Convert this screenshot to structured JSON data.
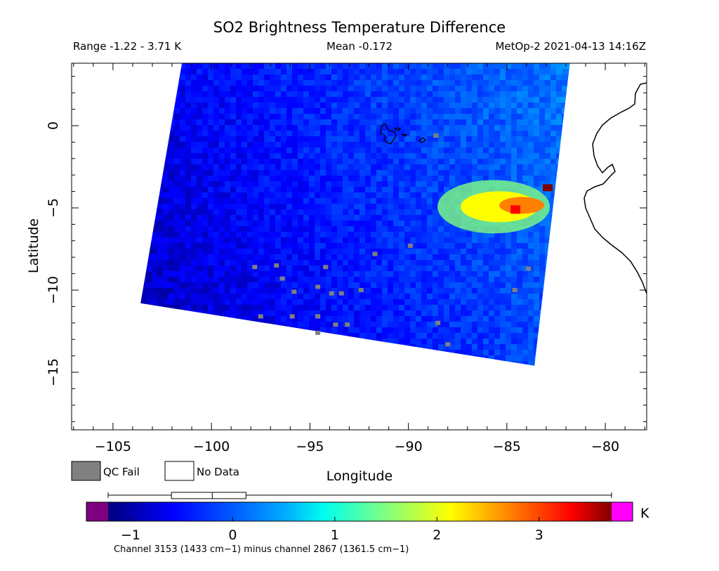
{
  "chart_data": {
    "type": "heatmap",
    "title": "SO2 Brightness Temperature Difference",
    "subtitle": {
      "range": "Range -1.22 - 3.71 K",
      "mean": "Mean -0.172",
      "instrument": "MetOp-2 2021-04-13 14:16Z"
    },
    "xlabel": "Longitude",
    "ylabel": "Latitude",
    "xlim": [
      -107.1,
      -77.9
    ],
    "ylim": [
      -18.5,
      3.8
    ],
    "x_ticks": [
      -105,
      -100,
      -95,
      -90,
      -85,
      -80
    ],
    "y_ticks": [
      0,
      -5,
      -10,
      -15
    ],
    "x_tick_labels": [
      "−105",
      "−100",
      "−95",
      "−90",
      "−85",
      "−80"
    ],
    "y_tick_labels": [
      "0",
      "−5",
      "−10",
      "−15"
    ],
    "swath_corners": [
      [
        -101.5,
        3.8
      ],
      [
        -81.8,
        3.8
      ],
      [
        -83.6,
        -14.6
      ],
      [
        -103.6,
        -10.8
      ]
    ],
    "plume": {
      "center": [
        -84.6,
        -5.1
      ],
      "peak_K": 3.71
    },
    "qc_fail_points": [
      [
        -97.8,
        -8.6
      ],
      [
        -96.7,
        -8.5
      ],
      [
        -96.4,
        -9.3
      ],
      [
        -95.8,
        -10.1
      ],
      [
        -94.2,
        -8.6
      ],
      [
        -94.6,
        -9.8
      ],
      [
        -93.9,
        -10.2
      ],
      [
        -93.4,
        -10.2
      ],
      [
        -97.5,
        -11.6
      ],
      [
        -95.9,
        -11.6
      ],
      [
        -94.6,
        -11.6
      ],
      [
        -93.7,
        -12.1
      ],
      [
        -93.1,
        -12.1
      ],
      [
        -94.6,
        -12.6
      ],
      [
        -92.4,
        -10.0
      ],
      [
        -91.7,
        -7.8
      ],
      [
        -89.9,
        -7.3
      ],
      [
        -88.5,
        -12.0
      ],
      [
        -88.0,
        -13.3
      ],
      [
        -88.6,
        -0.6
      ],
      [
        -84.6,
        -10.0
      ],
      [
        -83.9,
        -8.7
      ]
    ],
    "colorbar": {
      "unit": "K",
      "vmin": -1.22,
      "vmax": 3.71,
      "ticks": [
        -1,
        0,
        1,
        2,
        3
      ],
      "tick_labels": [
        "−1",
        "0",
        "1",
        "2",
        "3"
      ],
      "under_color": "#7f007f",
      "over_color": "#ff00ff",
      "caption": "Channel 3153 (1433 cm−1) minus channel 2867 (1361.5 cm−1)",
      "boxplot": {
        "min": -1.22,
        "q1": -0.6,
        "median": -0.2,
        "q3": 0.13,
        "max": 3.71
      }
    },
    "legend": [
      {
        "label": "QC Fail",
        "color": "#808080"
      },
      {
        "label": "No Data",
        "color": "#ffffff"
      }
    ],
    "grid": false
  }
}
